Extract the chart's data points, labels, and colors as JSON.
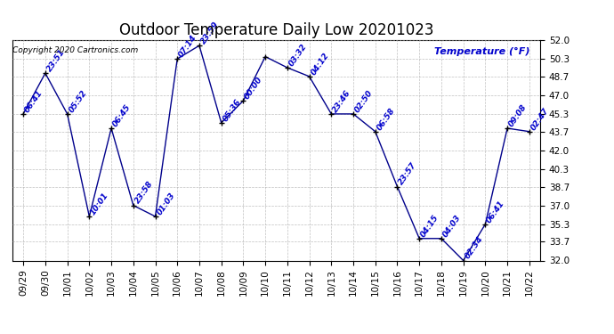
{
  "title": "Outdoor Temperature Daily Low 20201023",
  "ylabel": "Temperature (°F)",
  "copyright": "Copyright 2020 Cartronics.com",
  "line_color": "#00008B",
  "marker_color": "#000000",
  "bg_color": "#ffffff",
  "grid_color": "#b0b0b0",
  "label_color": "#0000CC",
  "ylim": [
    32.0,
    52.0
  ],
  "yticks": [
    32.0,
    33.7,
    35.3,
    37.0,
    38.7,
    40.3,
    42.0,
    43.7,
    45.3,
    47.0,
    48.7,
    50.3,
    52.0
  ],
  "dates": [
    "09/29",
    "09/30",
    "10/01",
    "10/02",
    "10/03",
    "10/04",
    "10/05",
    "10/06",
    "10/07",
    "10/08",
    "10/09",
    "10/10",
    "10/11",
    "10/12",
    "10/13",
    "10/14",
    "10/15",
    "10/16",
    "10/17",
    "10/18",
    "10/19",
    "10/20",
    "10/21",
    "10/22"
  ],
  "values": [
    45.3,
    49.0,
    45.3,
    36.0,
    44.0,
    37.0,
    36.0,
    50.3,
    51.5,
    44.5,
    46.5,
    50.5,
    49.5,
    48.7,
    45.3,
    45.3,
    43.7,
    38.7,
    34.0,
    34.0,
    32.0,
    35.3,
    44.0,
    43.7
  ],
  "time_labels": [
    "06:41",
    "23:51",
    "05:52",
    "10:01",
    "06:45",
    "23:58",
    "01:03",
    "07:14",
    "23:59",
    "05:36",
    "00:00",
    "",
    "03:32",
    "04:12",
    "23:46",
    "02:50",
    "06:58",
    "23:57",
    "04:15",
    "04:03",
    "02:34",
    "06:41",
    "09:08",
    "02:47"
  ],
  "title_fontsize": 12,
  "tick_fontsize": 7.5,
  "label_fontsize": 6.5,
  "copyright_fontsize": 6.5,
  "ylabel_fontsize": 8
}
